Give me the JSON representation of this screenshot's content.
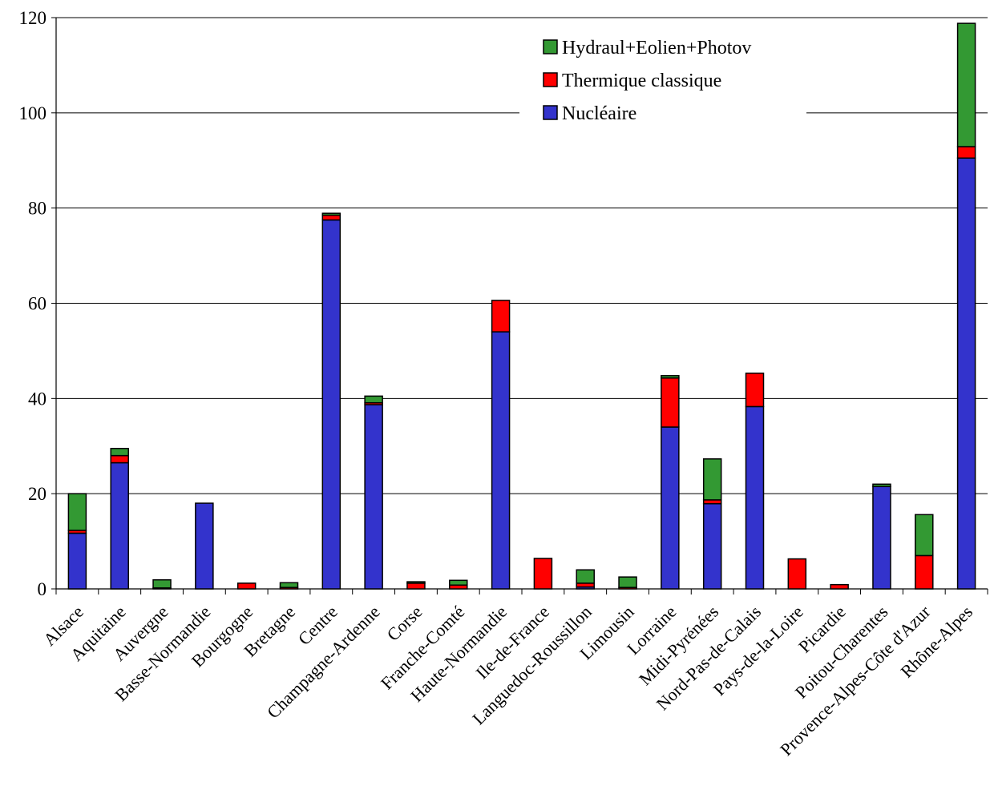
{
  "chart_data": {
    "type": "bar",
    "stacked": true,
    "title": "",
    "xlabel": "",
    "ylabel": "",
    "ylim": [
      0,
      120
    ],
    "yticks": [
      0,
      20,
      40,
      60,
      80,
      100,
      120
    ],
    "grid": true,
    "legend_position": "top-right",
    "categories": [
      "Alsace",
      "Aquitaine",
      "Auvergne",
      "Basse-Normandie",
      "Bourgogne",
      "Bretagne",
      "Centre",
      "Champagne-Ardenne",
      "Corse",
      "Franche-Comté",
      "Haute-Normandie",
      "Ile-de-France",
      "Languedoc-Roussillon",
      "Limousin",
      "Lorraine",
      "Midi-Pyrénées",
      "Nord-Pas-de-Calais",
      "Pays-de-la-Loire",
      "Picardie",
      "Poitou-Charentes",
      "Provence-Alpes-Côte d'Azur",
      "Rhône-Alpes"
    ],
    "series": [
      {
        "name": "Nucléaire",
        "color": "#3333cc",
        "values": [
          11.7,
          26.5,
          0,
          18,
          0,
          0,
          77.5,
          38.7,
          0,
          0,
          54,
          0,
          0.4,
          0,
          34,
          17.9,
          38.3,
          0,
          0,
          21.5,
          0,
          90.5
        ]
      },
      {
        "name": "Thermique classique",
        "color": "#ff0000",
        "values": [
          0.6,
          1.5,
          0.2,
          0,
          1.2,
          0.3,
          1.0,
          0.4,
          1.2,
          0.8,
          6.6,
          6.4,
          0.8,
          0.3,
          10.3,
          0.8,
          7.0,
          6.3,
          0.9,
          0,
          7.0,
          2.4
        ]
      },
      {
        "name": "Hydraul+Eolien+Photov",
        "color": "#339933",
        "values": [
          7.7,
          1.5,
          1.7,
          0,
          0,
          1.0,
          0.4,
          1.4,
          0.3,
          1.0,
          0,
          0,
          2.8,
          2.2,
          0.5,
          8.6,
          0,
          0,
          0,
          0.5,
          8.6,
          25.9
        ]
      }
    ]
  }
}
